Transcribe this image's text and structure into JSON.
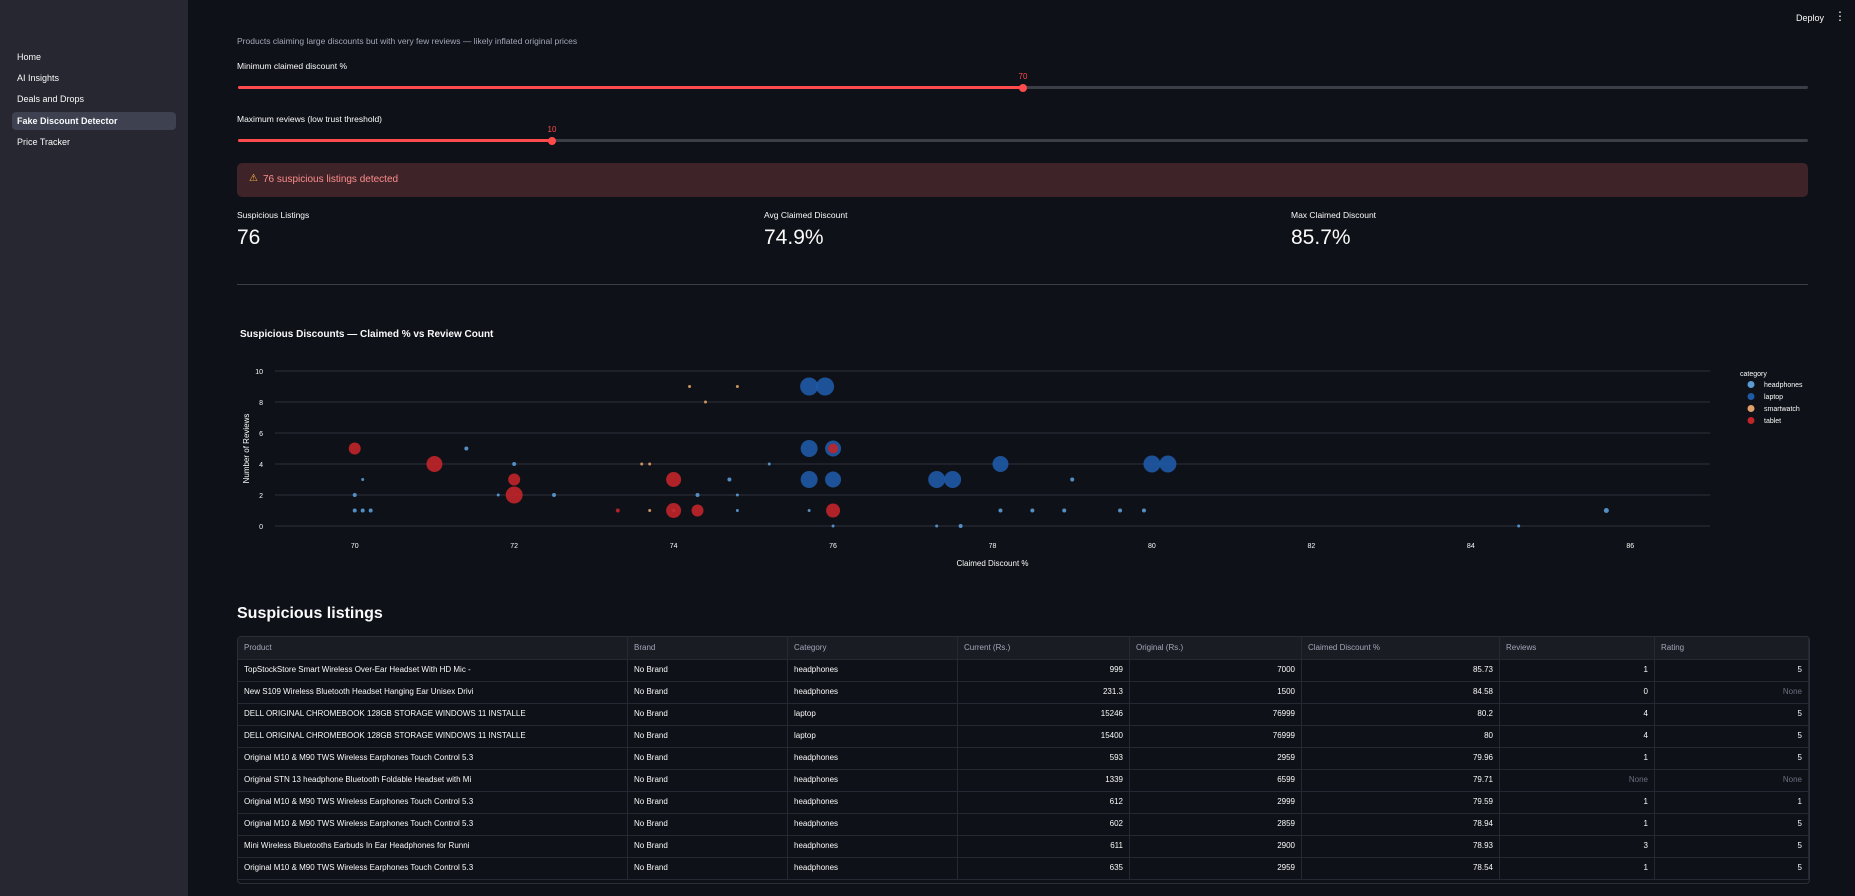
{
  "sidebar": {
    "items": [
      {
        "label": "Home"
      },
      {
        "label": "AI Insights"
      },
      {
        "label": "Deals and Drops"
      },
      {
        "label": "Fake Discount Detector"
      },
      {
        "label": "Price Tracker"
      }
    ],
    "active_index": 3
  },
  "topbar": {
    "deploy_label": "Deploy",
    "menu_icon": "kebab-menu-icon"
  },
  "page": {
    "caption": "Products claiming large discounts but with very few reviews — likely inflated original prices"
  },
  "sliders": [
    {
      "label": "Minimum claimed discount %",
      "value": "70",
      "fraction": 0.5
    },
    {
      "label": "Maximum reviews (low trust threshold)",
      "value": "10",
      "fraction": 0.2
    }
  ],
  "alert": {
    "icon": "warning-icon",
    "text": "76 suspicious listings detected"
  },
  "metrics": [
    {
      "label": "Suspicious Listings",
      "value": "76"
    },
    {
      "label": "Avg Claimed Discount",
      "value": "74.9%"
    },
    {
      "label": "Max Claimed Discount",
      "value": "85.7%"
    }
  ],
  "chart_data": {
    "type": "scatter",
    "title": "Suspicious Discounts — Claimed % vs Review Count",
    "xlabel": "Claimed Discount %",
    "ylabel": "Number of Reviews",
    "xlim": [
      69,
      87
    ],
    "ylim": [
      0,
      10
    ],
    "xticks": [
      70,
      72,
      74,
      76,
      78,
      80,
      82,
      84,
      86
    ],
    "yticks": [
      0,
      2,
      4,
      6,
      8,
      10
    ],
    "grid": true,
    "legend": {
      "title": "category",
      "placement": "right"
    },
    "series": [
      {
        "name": "headphones",
        "color": "#5b9bd5",
        "points": [
          [
            70.0,
            1,
            2
          ],
          [
            70.1,
            1,
            2
          ],
          [
            70.2,
            1,
            2
          ],
          [
            70.0,
            2,
            2
          ],
          [
            70.1,
            3,
            1.5
          ],
          [
            71.4,
            5,
            2
          ],
          [
            71.8,
            2,
            1.5
          ],
          [
            72.0,
            4,
            2
          ],
          [
            72.5,
            2,
            2
          ],
          [
            74.7,
            3,
            2
          ],
          [
            74.3,
            2,
            2
          ],
          [
            74.8,
            2,
            1.5
          ],
          [
            75.2,
            4,
            1.5
          ],
          [
            74.8,
            1,
            1.5
          ],
          [
            75.7,
            1,
            1.5
          ],
          [
            76.0,
            0,
            1.5
          ],
          [
            77.3,
            0,
            1.5
          ],
          [
            77.6,
            0,
            2
          ],
          [
            78.1,
            1,
            2
          ],
          [
            78.5,
            1,
            2
          ],
          [
            78.9,
            1,
            2
          ],
          [
            79.0,
            3,
            2
          ],
          [
            79.6,
            1,
            2
          ],
          [
            79.9,
            1,
            2
          ],
          [
            84.6,
            0,
            1.5
          ],
          [
            85.7,
            1,
            2.5
          ]
        ]
      },
      {
        "name": "laptop",
        "color": "#1f5aa6",
        "points": [
          [
            75.7,
            9,
            9
          ],
          [
            75.9,
            9,
            9
          ],
          [
            75.7,
            5,
            8.5
          ],
          [
            76.0,
            5,
            8
          ],
          [
            75.7,
            3,
            8.5
          ],
          [
            76.0,
            3,
            8
          ],
          [
            77.3,
            3,
            8.5
          ],
          [
            77.5,
            3,
            8.5
          ],
          [
            78.1,
            4,
            8
          ],
          [
            80.0,
            4,
            8.5
          ],
          [
            80.2,
            4,
            8.5
          ]
        ]
      },
      {
        "name": "smartwatch",
        "color": "#e0a06a",
        "points": [
          [
            74.2,
            9,
            1.5
          ],
          [
            74.8,
            9,
            1.5
          ],
          [
            74.4,
            8,
            1.5
          ],
          [
            73.6,
            4,
            1.5
          ],
          [
            73.7,
            4,
            1.5
          ],
          [
            73.7,
            1,
            1.5
          ],
          [
            74.0,
            1,
            1.5
          ]
        ]
      },
      {
        "name": "tablet",
        "color": "#c0252a",
        "points": [
          [
            70.0,
            5,
            6
          ],
          [
            71.0,
            4,
            8
          ],
          [
            72.0,
            3,
            6
          ],
          [
            72.0,
            2,
            8.5
          ],
          [
            73.3,
            1,
            2
          ],
          [
            74.0,
            3,
            7.5
          ],
          [
            74.0,
            1,
            7.5
          ],
          [
            74.3,
            1,
            6
          ],
          [
            76.0,
            5,
            5
          ],
          [
            76.0,
            1,
            7
          ]
        ]
      }
    ]
  },
  "table": {
    "title": "Suspicious listings",
    "columns": [
      "Product",
      "Brand",
      "Category",
      "Current (Rs.)",
      "Original (Rs.)",
      "Claimed Discount %",
      "Reviews",
      "Rating"
    ],
    "rows": [
      [
        "TopStockStore Smart Wireless Over-Ear Headset With HD Mic -",
        "No Brand",
        "headphones",
        "999",
        "7000",
        "85.73",
        "1",
        "5"
      ],
      [
        "New S109 Wireless Bluetooth Headset Hanging Ear Unisex Drivi",
        "No Brand",
        "headphones",
        "231.3",
        "1500",
        "84.58",
        "0",
        "None"
      ],
      [
        "DELL ORIGINAL CHROMEBOOK  128GB STORAGE  WINDOWS 11 INSTALLE",
        "No Brand",
        "laptop",
        "15246",
        "76999",
        "80.2",
        "4",
        "5"
      ],
      [
        "DELL ORIGINAL CHROMEBOOK  128GB STORAGE  WINDOWS 11 INSTALLE",
        "No Brand",
        "laptop",
        "15400",
        "76999",
        "80",
        "4",
        "5"
      ],
      [
        "Original M10 & M90 TWS Wireless Earphones Touch Control 5.3",
        "No Brand",
        "headphones",
        "593",
        "2959",
        "79.96",
        "1",
        "5"
      ],
      [
        "Original STN 13 headphone Bluetooth Foldable Headset with Mi",
        "No Brand",
        "headphones",
        "1339",
        "6599",
        "79.71",
        "None",
        "None"
      ],
      [
        "Original M10 & M90 TWS Wireless Earphones Touch Control 5.3",
        "No Brand",
        "headphones",
        "612",
        "2999",
        "79.59",
        "1",
        "1"
      ],
      [
        "Original M10 & M90 TWS Wireless Earphones Touch Control 5.3",
        "No Brand",
        "headphones",
        "602",
        "2859",
        "78.94",
        "1",
        "5"
      ],
      [
        "Mini Wireless Bluetooths Earbuds In Ear Headphones for Runni",
        "No Brand",
        "headphones",
        "611",
        "2900",
        "78.93",
        "3",
        "5"
      ],
      [
        "Original M10 & M90 TWS Wireless Earphones Touch Control 5.3",
        "No Brand",
        "headphones",
        "635",
        "2959",
        "78.54",
        "1",
        "5"
      ]
    ]
  }
}
